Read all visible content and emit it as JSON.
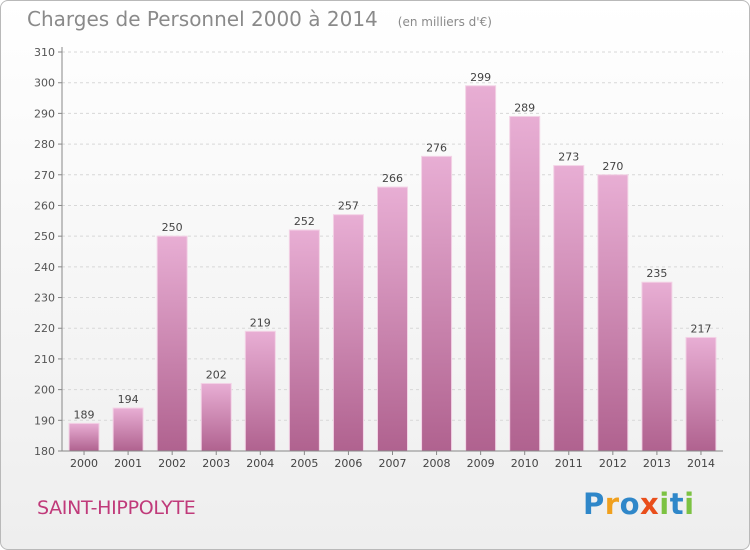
{
  "header": {
    "title": "Charges de Personnel 2000 à 2014",
    "subtitle": "(en milliers d'€)"
  },
  "footer": {
    "commune": "SAINT-HIPPOLYTE",
    "brand": "Proxiti"
  },
  "colors": {
    "bar_top": "#e8aed4",
    "bar_bottom": "#b0628f",
    "title": "#8a8a8a",
    "commune": "#c03a7a",
    "axis": "#888888",
    "grid": "#d8d8d8"
  },
  "brand_letter_colors": [
    "#2f87c9",
    "#f0a01e",
    "#2f87c9",
    "#e94e1b",
    "#7cc242",
    "#2f87c9",
    "#7cc242"
  ],
  "chart_data": {
    "type": "bar",
    "categories": [
      "2000",
      "2001",
      "2002",
      "2003",
      "2004",
      "2005",
      "2006",
      "2007",
      "2008",
      "2009",
      "2010",
      "2011",
      "2012",
      "2013",
      "2014"
    ],
    "values": [
      189,
      194,
      250,
      202,
      219,
      252,
      257,
      266,
      276,
      299,
      289,
      273,
      270,
      235,
      217
    ],
    "ylim": [
      180,
      310
    ],
    "yticks": [
      180,
      190,
      200,
      210,
      220,
      230,
      240,
      250,
      260,
      270,
      280,
      290,
      300,
      310
    ],
    "grid": true,
    "legend": "none"
  }
}
